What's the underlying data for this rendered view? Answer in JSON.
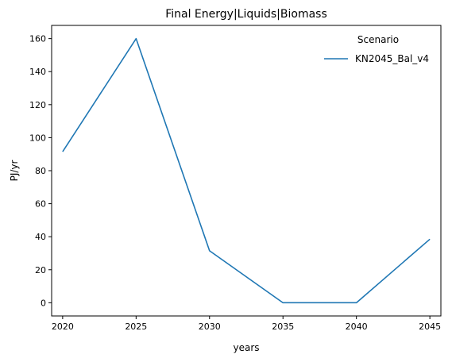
{
  "chart_data": {
    "type": "line",
    "title": "Final Energy|Liquids|Biomass",
    "xlabel": "years",
    "ylabel": "PJ/yr",
    "x": [
      2020,
      2025,
      2030,
      2035,
      2040,
      2045
    ],
    "xticks": [
      "2020",
      "2025",
      "2030",
      "2035",
      "2040",
      "2045"
    ],
    "yticks": [
      "0",
      "20",
      "40",
      "60",
      "80",
      "100",
      "120",
      "140",
      "160"
    ],
    "xlim": [
      2019.25,
      2045.75
    ],
    "ylim": [
      -8,
      168
    ],
    "series": [
      {
        "name": "KN2045_Bal_v4",
        "values": [
          91.5,
          160,
          31.5,
          0,
          0,
          38.5
        ],
        "color": "#1f77b4"
      }
    ],
    "legend": {
      "title": "Scenario",
      "position": "top-right"
    },
    "grid": false
  }
}
